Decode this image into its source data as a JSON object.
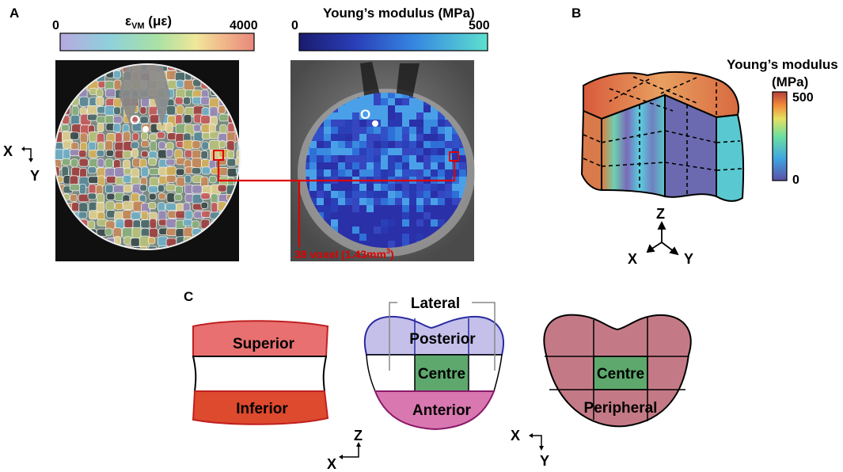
{
  "panels": {
    "a": "A",
    "b": "B",
    "c": "C"
  },
  "panel_a": {
    "strain_bar": {
      "title_main": "ε",
      "title_sub": "VM",
      "title_unit": " (με)",
      "min": "0",
      "max": "4000"
    },
    "modulus_bar": {
      "title": "Young’s modulus (MPa)",
      "min": "0",
      "max": "500"
    },
    "origin_label": "O",
    "axis_x": "X",
    "axis_y": "Y",
    "voxel_note_main": "38 voxel (1.43mm",
    "voxel_note_sup": "3",
    "voxel_note_end": ")"
  },
  "panel_b": {
    "legend_title_line1": "Young’s modulus",
    "legend_title_line2": "(MPa)",
    "legend_max": "500",
    "legend_min": "0",
    "axis_z": "Z",
    "axis_x": "X",
    "axis_y": "Y"
  },
  "panel_c": {
    "vertical": {
      "top": "Superior",
      "bottom": "Inferior",
      "top_color": "#e87070",
      "bottom_color": "#dd4a2e"
    },
    "transverse": {
      "side": "Lateral",
      "top": "Posterior",
      "middle": "Centre",
      "bottom": "Anterior",
      "top_color": "#c4c0ea",
      "middle_color": "#5ea86e",
      "bottom_color": "#d978b0"
    },
    "radial": {
      "inner": "Centre",
      "outer": "Peripheral",
      "outer_color": "#c47a86",
      "inner_color": "#5ea86e"
    },
    "axis_z": "Z",
    "axis_x1": "X",
    "axis_x2": "X",
    "axis_y": "Y"
  },
  "colors": {
    "accent_red": "#e00000"
  }
}
